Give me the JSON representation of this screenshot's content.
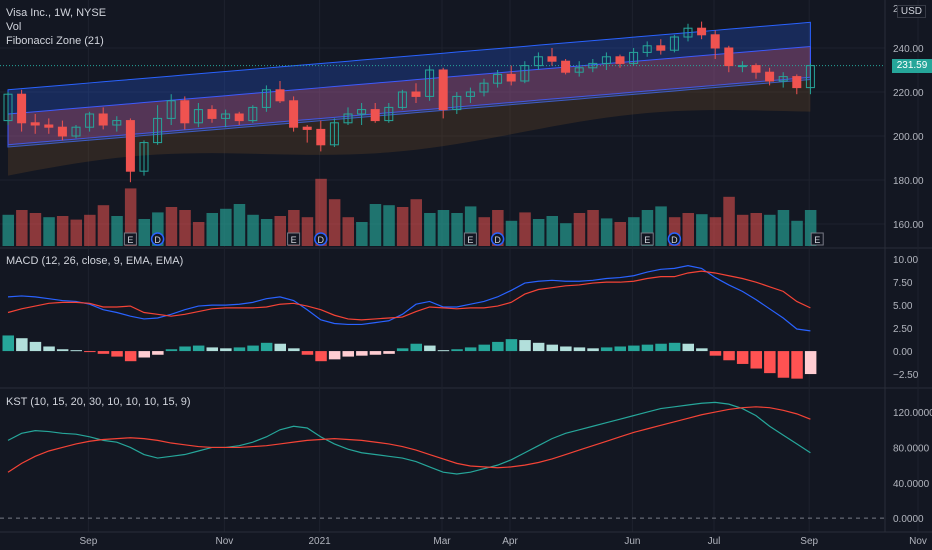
{
  "header": {
    "symbol_line": "Visa Inc., 1W, NYSE",
    "vol_label": "Vol",
    "fib_label": "Fibonacci Zone (21)",
    "currency": "USD",
    "last_price": "231.59"
  },
  "macd_legend": "MACD (12, 26, close, 9, EMA, EMA)",
  "kst_legend": "KST (10, 15, 20, 30, 10, 10, 10, 15, 9)",
  "colors": {
    "up": "#26a69a",
    "down": "#ef5350",
    "macd": "#2962ff",
    "signal": "#f44336",
    "kst": "#26a69a",
    "kst_signal": "#f44336",
    "bg": "#131722",
    "grid": "#1e222d"
  },
  "chart_data": [
    {
      "type": "candlestick",
      "title": "Visa Inc., 1W, NYSE",
      "ylim": [
        150,
        260
      ],
      "yticks": [
        160,
        180,
        200,
        220,
        240
      ],
      "xticks": [
        "Sep",
        "Nov",
        "2021",
        "Mar",
        "Apr",
        "Jun",
        "Jul",
        "Sep",
        "Nov"
      ],
      "candles": [
        [
          207,
          220,
          205,
          219
        ],
        [
          219,
          221,
          202,
          206
        ],
        [
          206,
          210,
          201,
          205
        ],
        [
          205,
          208,
          201,
          204
        ],
        [
          204,
          207,
          198,
          200
        ],
        [
          200,
          205,
          199,
          204
        ],
        [
          204,
          211,
          202,
          210
        ],
        [
          210,
          213,
          203,
          205
        ],
        [
          205,
          209,
          202,
          207
        ],
        [
          207,
          208,
          179,
          184
        ],
        [
          184,
          198,
          182,
          197
        ],
        [
          197,
          214,
          196,
          208
        ],
        [
          208,
          219,
          205,
          216
        ],
        [
          216,
          218,
          203,
          206
        ],
        [
          206,
          215,
          204,
          212
        ],
        [
          212,
          214,
          206,
          208
        ],
        [
          208,
          212,
          204,
          210
        ],
        [
          210,
          211,
          205,
          207
        ],
        [
          207,
          214,
          206,
          213
        ],
        [
          213,
          223,
          211,
          221
        ],
        [
          221,
          225,
          215,
          216
        ],
        [
          216,
          218,
          202,
          204
        ],
        [
          204,
          205,
          197,
          203
        ],
        [
          203,
          207,
          193,
          196
        ],
        [
          196,
          208,
          195,
          206
        ],
        [
          206,
          213,
          205,
          210
        ],
        [
          210,
          215,
          205,
          212
        ],
        [
          212,
          215,
          206,
          207
        ],
        [
          207,
          215,
          206,
          213
        ],
        [
          213,
          221,
          212,
          220
        ],
        [
          220,
          224,
          215,
          218
        ],
        [
          218,
          232,
          216,
          230
        ],
        [
          230,
          231,
          208,
          212
        ],
        [
          212,
          220,
          210,
          218
        ],
        [
          218,
          222,
          215,
          220
        ],
        [
          220,
          226,
          218,
          224
        ],
        [
          224,
          230,
          222,
          228
        ],
        [
          228,
          232,
          223,
          225
        ],
        [
          225,
          234,
          224,
          232
        ],
        [
          232,
          238,
          230,
          236
        ],
        [
          236,
          240,
          232,
          234
        ],
        [
          234,
          235,
          228,
          229
        ],
        [
          229,
          234,
          227,
          231
        ],
        [
          231,
          235,
          229,
          233
        ],
        [
          233,
          238,
          230,
          236
        ],
        [
          236,
          237,
          231,
          233
        ],
        [
          233,
          240,
          232,
          238
        ],
        [
          238,
          243,
          236,
          241
        ],
        [
          241,
          244,
          237,
          239
        ],
        [
          239,
          246,
          238,
          245
        ],
        [
          245,
          251,
          243,
          249
        ],
        [
          249,
          252,
          244,
          246
        ],
        [
          246,
          248,
          235,
          240
        ],
        [
          240,
          241,
          229,
          232
        ],
        [
          232,
          234,
          229,
          232
        ],
        [
          232,
          233,
          226,
          229
        ],
        [
          229,
          231,
          223,
          225
        ],
        [
          225,
          229,
          222,
          227
        ],
        [
          227,
          228,
          219,
          222
        ],
        [
          222,
          233,
          219,
          232
        ]
      ],
      "volume": [
        [
          52,
          "up"
        ],
        [
          60,
          "down"
        ],
        [
          55,
          "down"
        ],
        [
          48,
          "up"
        ],
        [
          50,
          "down"
        ],
        [
          44,
          "down"
        ],
        [
          52,
          "down"
        ],
        [
          68,
          "down"
        ],
        [
          50,
          "up"
        ],
        [
          96,
          "down"
        ],
        [
          45,
          "up"
        ],
        [
          56,
          "up"
        ],
        [
          65,
          "down"
        ],
        [
          60,
          "down"
        ],
        [
          40,
          "down"
        ],
        [
          55,
          "up"
        ],
        [
          62,
          "up"
        ],
        [
          70,
          "up"
        ],
        [
          52,
          "up"
        ],
        [
          45,
          "up"
        ],
        [
          50,
          "down"
        ],
        [
          60,
          "down"
        ],
        [
          48,
          "down"
        ],
        [
          112,
          "down"
        ],
        [
          78,
          "down"
        ],
        [
          48,
          "down"
        ],
        [
          40,
          "up"
        ],
        [
          70,
          "up"
        ],
        [
          68,
          "up"
        ],
        [
          65,
          "down"
        ],
        [
          78,
          "down"
        ],
        [
          55,
          "up"
        ],
        [
          60,
          "up"
        ],
        [
          55,
          "up"
        ],
        [
          66,
          "up"
        ],
        [
          48,
          "down"
        ],
        [
          60,
          "down"
        ],
        [
          42,
          "up"
        ],
        [
          56,
          "down"
        ],
        [
          45,
          "up"
        ],
        [
          50,
          "up"
        ],
        [
          38,
          "up"
        ],
        [
          55,
          "down"
        ],
        [
          60,
          "down"
        ],
        [
          46,
          "up"
        ],
        [
          40,
          "down"
        ],
        [
          48,
          "up"
        ],
        [
          60,
          "up"
        ],
        [
          66,
          "up"
        ],
        [
          48,
          "down"
        ],
        [
          55,
          "down"
        ],
        [
          53,
          "up"
        ],
        [
          48,
          "down"
        ],
        [
          82,
          "down"
        ],
        [
          52,
          "down"
        ],
        [
          55,
          "down"
        ],
        [
          52,
          "up"
        ],
        [
          60,
          "up"
        ],
        [
          42,
          "up"
        ],
        [
          60,
          "up"
        ]
      ]
    },
    {
      "type": "bar",
      "title": "MACD (12, 26, close, 9, EMA, EMA)",
      "ylim": [
        -3.8,
        11
      ],
      "yticks": [
        -2.5,
        0.0,
        2.5,
        5.0,
        7.5,
        10.0
      ],
      "ytick_labels": [
        "−2.50",
        "0.00",
        "2.50",
        "5.00",
        "7.50",
        "10.00"
      ],
      "histogram": [
        1.7,
        1.4,
        1.0,
        0.5,
        0.2,
        0.1,
        -0.1,
        -0.3,
        -0.6,
        -1.1,
        -0.7,
        -0.4,
        0.2,
        0.5,
        0.6,
        0.4,
        0.3,
        0.4,
        0.6,
        0.9,
        0.8,
        0.3,
        -0.4,
        -1.1,
        -0.9,
        -0.6,
        -0.5,
        -0.4,
        -0.3,
        0.3,
        0.8,
        0.6,
        0.1,
        0.2,
        0.4,
        0.7,
        1.0,
        1.3,
        1.2,
        0.9,
        0.7,
        0.5,
        0.4,
        0.3,
        0.4,
        0.5,
        0.6,
        0.7,
        0.8,
        0.9,
        0.8,
        0.3,
        -0.5,
        -1.0,
        -1.4,
        -1.9,
        -2.4,
        -2.9,
        -3.0,
        -2.5
      ],
      "macd": [
        5.9,
        6.0,
        5.9,
        5.7,
        5.5,
        5.4,
        5.1,
        4.5,
        4.2,
        3.8,
        3.5,
        3.6,
        4.0,
        4.5,
        4.9,
        5.0,
        5.0,
        5.1,
        5.3,
        5.7,
        5.9,
        5.5,
        4.5,
        3.4,
        3.0,
        2.9,
        2.9,
        3.1,
        3.3,
        4.0,
        5.1,
        5.4,
        4.8,
        4.8,
        5.1,
        5.4,
        5.9,
        6.6,
        7.4,
        7.6,
        7.7,
        7.6,
        7.6,
        7.7,
        7.9,
        8.0,
        8.2,
        8.6,
        8.9,
        9.0,
        9.3,
        9.0,
        8.0,
        7.2,
        6.5,
        5.6,
        4.6,
        3.6,
        2.4,
        2.2
      ],
      "signal": [
        4.2,
        4.6,
        4.9,
        5.2,
        5.3,
        5.3,
        5.2,
        4.8,
        4.8,
        4.9,
        4.2,
        4.0,
        3.8,
        4.0,
        4.3,
        4.6,
        4.7,
        4.7,
        4.7,
        4.8,
        5.1,
        5.2,
        4.9,
        4.5,
        3.9,
        3.5,
        3.4,
        3.5,
        3.6,
        3.7,
        4.3,
        4.8,
        4.7,
        4.6,
        4.7,
        4.7,
        4.9,
        5.3,
        6.2,
        6.7,
        6.9,
        7.1,
        7.2,
        7.4,
        7.5,
        7.5,
        7.6,
        7.9,
        8.1,
        8.1,
        8.5,
        8.7,
        8.5,
        8.2,
        7.9,
        7.5,
        7.0,
        6.5,
        5.4,
        4.7
      ]
    },
    {
      "type": "line",
      "title": "KST (10, 15, 20, 30, 10, 10, 10, 15, 9)",
      "ylim": [
        -10,
        145
      ],
      "yticks": [
        0,
        40,
        80,
        120
      ],
      "ytick_labels": [
        "0.0000",
        "40.0000",
        "80.0000",
        "120.0000"
      ],
      "kst": [
        88,
        96,
        99,
        98,
        96,
        95,
        92,
        88,
        86,
        80,
        72,
        68,
        70,
        72,
        76,
        80,
        80,
        82,
        86,
        92,
        100,
        104,
        102,
        92,
        84,
        78,
        74,
        72,
        70,
        68,
        64,
        58,
        52,
        50,
        52,
        56,
        60,
        66,
        74,
        82,
        90,
        96,
        100,
        104,
        108,
        112,
        116,
        120,
        124,
        126,
        128,
        130,
        131,
        129,
        124,
        116,
        104,
        94,
        84,
        74
      ],
      "signal": [
        52,
        62,
        70,
        76,
        80,
        84,
        87,
        89,
        90,
        91,
        90,
        88,
        85,
        83,
        81,
        80,
        80,
        80,
        81,
        82,
        84,
        86,
        88,
        89,
        90,
        89,
        88,
        86,
        84,
        81,
        77,
        72,
        67,
        62,
        59,
        58,
        57,
        58,
        60,
        63,
        67,
        72,
        77,
        82,
        87,
        92,
        97,
        101,
        105,
        109,
        113,
        117,
        120,
        123,
        125,
        126,
        125,
        122,
        118,
        112
      ]
    }
  ]
}
